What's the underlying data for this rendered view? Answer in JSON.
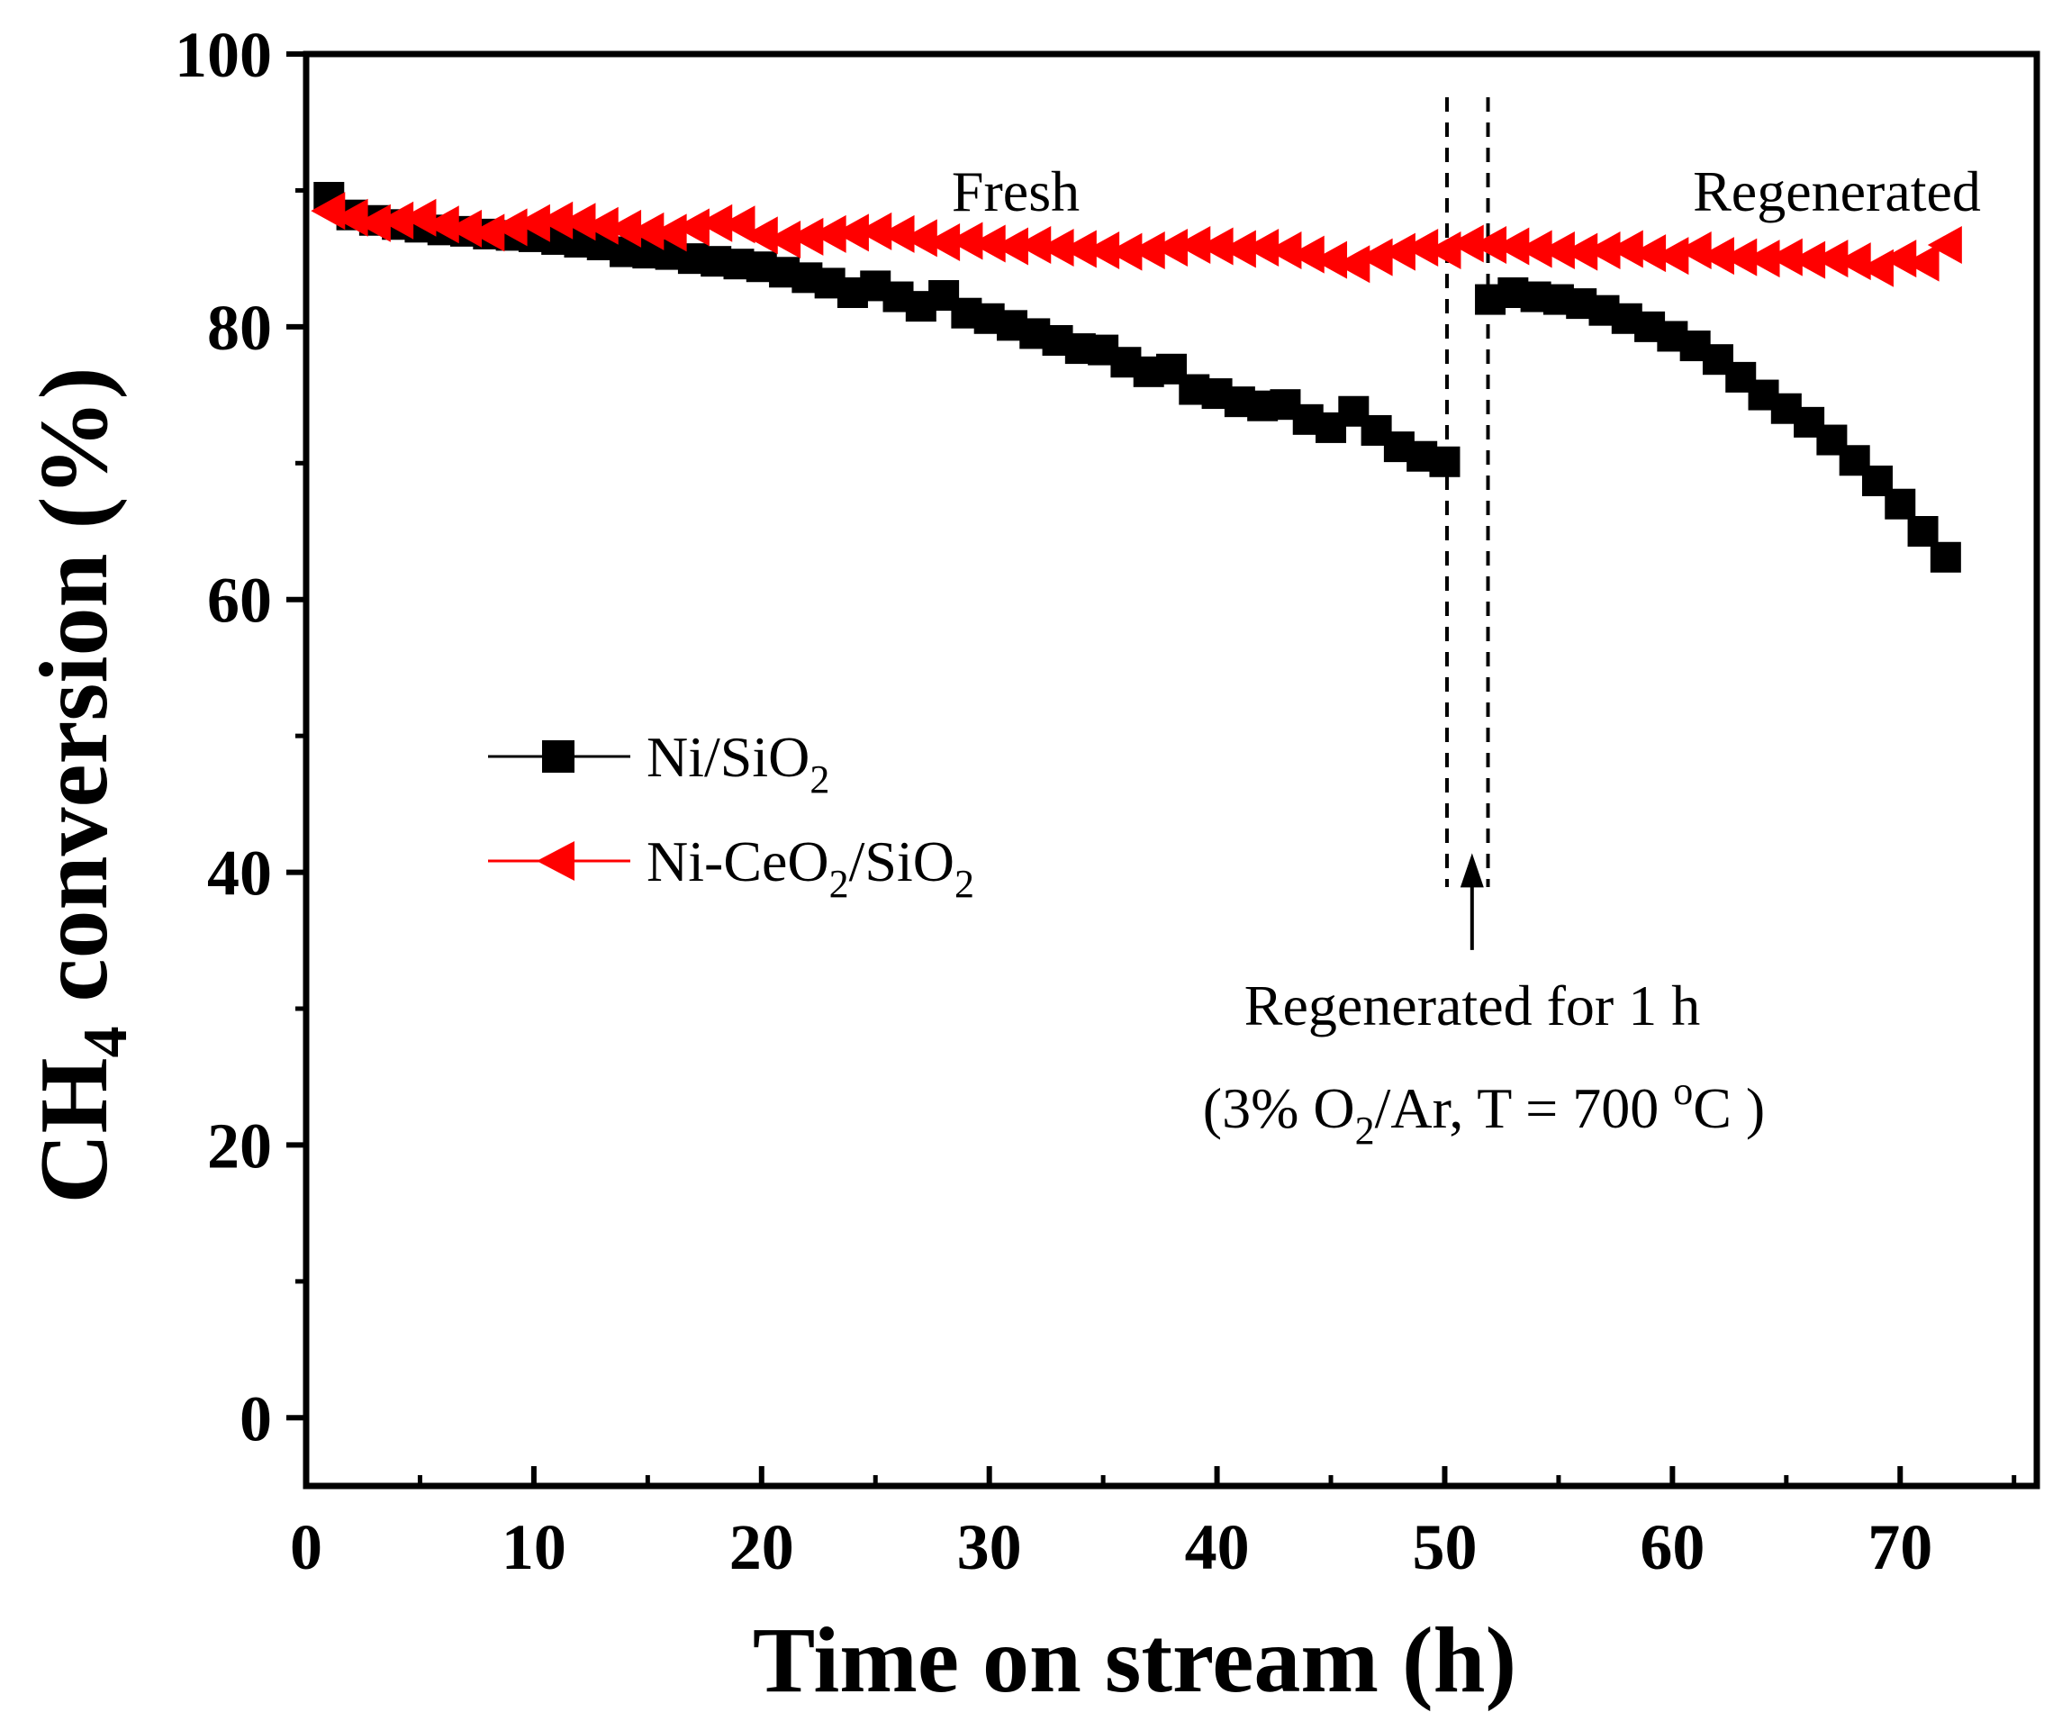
{
  "chart_data": {
    "type": "line",
    "xlabel": "Time on stream (h)",
    "ylabel": {
      "main": "CH",
      "sub": "4",
      "rest": " conversion (%)"
    },
    "xlim": [
      0,
      76
    ],
    "ylim": [
      -5,
      100
    ],
    "xticks": [
      0,
      10,
      20,
      30,
      40,
      50,
      60,
      70
    ],
    "yticks": [
      0,
      20,
      40,
      60,
      80,
      100
    ],
    "series": [
      {
        "name": "Ni/SiO2",
        "legend": {
          "main": "Ni/SiO",
          "sub": "2"
        },
        "color": "#000000",
        "marker": "square",
        "segments": [
          {
            "x": [
              1,
              2,
              3,
              4,
              5,
              6,
              7,
              8,
              9,
              10,
              11,
              12,
              13,
              14,
              15,
              16,
              17,
              18,
              19,
              20,
              21,
              22,
              23,
              24,
              25,
              26,
              27,
              28,
              29,
              30,
              31,
              32,
              33,
              34,
              35,
              36,
              37,
              38,
              39,
              40,
              41,
              42,
              43,
              44,
              45,
              46,
              47,
              48,
              49,
              50
            ],
            "y": [
              89.5,
              88.2,
              87.8,
              87.5,
              87.3,
              87.1,
              87.0,
              86.8,
              86.7,
              86.6,
              86.4,
              86.2,
              86.0,
              85.5,
              85.4,
              85.3,
              85.0,
              84.8,
              84.6,
              84.4,
              84.0,
              83.6,
              83.2,
              82.5,
              83.0,
              82.2,
              81.5,
              82.3,
              81.0,
              80.6,
              80.1,
              79.5,
              79.0,
              78.4,
              78.3,
              77.4,
              76.7,
              76.9,
              75.4,
              75.1,
              74.5,
              74.2,
              74.3,
              73.2,
              72.6,
              73.8,
              72.4,
              71.2,
              70.5,
              70.1
            ]
          },
          {
            "x": [
              52,
              53,
              54,
              55,
              56,
              57,
              58,
              59,
              60,
              61,
              62,
              63,
              64,
              65,
              66,
              67,
              68,
              69,
              70,
              71,
              72
            ],
            "y": [
              82.0,
              82.5,
              82.2,
              82.0,
              81.7,
              81.2,
              80.6,
              80.0,
              79.3,
              78.6,
              77.6,
              76.3,
              75.0,
              74.0,
              73.0,
              71.7,
              70.2,
              68.7,
              67.0,
              65.0,
              63.1
            ]
          }
        ]
      },
      {
        "name": "Ni-CeO2/SiO2",
        "legend": {
          "main": "Ni-CeO",
          "sub": "2",
          "rest": "/SiO",
          "sub2": "2"
        },
        "color": "#ff0000",
        "marker": "triangle-left",
        "segments": [
          {
            "x": [
              1,
              2,
              3,
              4,
              5,
              6,
              7,
              8,
              9,
              10,
              11,
              12,
              13,
              14,
              15,
              16,
              17,
              18,
              19,
              20,
              21,
              22,
              23,
              24,
              25,
              26,
              27,
              28,
              29,
              30,
              31,
              32,
              33,
              34,
              35,
              36,
              37,
              38,
              39,
              40,
              41,
              42,
              43,
              44,
              45,
              46,
              47,
              48,
              49,
              50
            ],
            "y": [
              88.5,
              88.0,
              87.6,
              87.8,
              88.0,
              87.5,
              87.2,
              86.9,
              87.3,
              87.6,
              87.8,
              87.7,
              87.4,
              87.2,
              87.0,
              86.9,
              87.3,
              87.6,
              87.5,
              86.7,
              86.4,
              86.6,
              86.8,
              86.9,
              87.0,
              86.8,
              86.5,
              86.2,
              86.3,
              86.1,
              85.9,
              86.0,
              85.8,
              85.7,
              85.6,
              85.5,
              85.6,
              85.8,
              86.0,
              85.9,
              85.7,
              85.8,
              85.6,
              85.3,
              84.9,
              84.6,
              85.1,
              85.5,
              85.8,
              85.6
            ]
          },
          {
            "x": [
              51,
              52,
              53,
              54,
              55,
              56,
              57,
              58,
              59,
              60,
              61,
              62,
              63,
              64,
              65,
              66,
              67,
              68,
              69,
              70,
              71,
              72
            ],
            "y": [
              86.1,
              86.0,
              85.9,
              85.7,
              85.6,
              85.5,
              85.6,
              85.7,
              85.4,
              85.2,
              85.6,
              85.2,
              85.1,
              85.0,
              85.1,
              84.9,
              85.0,
              84.8,
              84.3,
              85.0,
              84.7,
              86.0
            ]
          }
        ]
      }
    ],
    "regeneration_lines_x": [
      50.1,
      51.9
    ],
    "arrow": {
      "x": 51.2,
      "y_from": 34.3,
      "y_to": 41
    },
    "annotations": {
      "fresh": "Fresh",
      "regenerated": "Regenerated",
      "regen_line1": "Regenerated for 1 h",
      "regen_line2": {
        "part1": "(3% O",
        "sub": "2",
        "part2": "/Ar, T = 700 ",
        "sup": "o",
        "part3": "C )"
      }
    }
  }
}
